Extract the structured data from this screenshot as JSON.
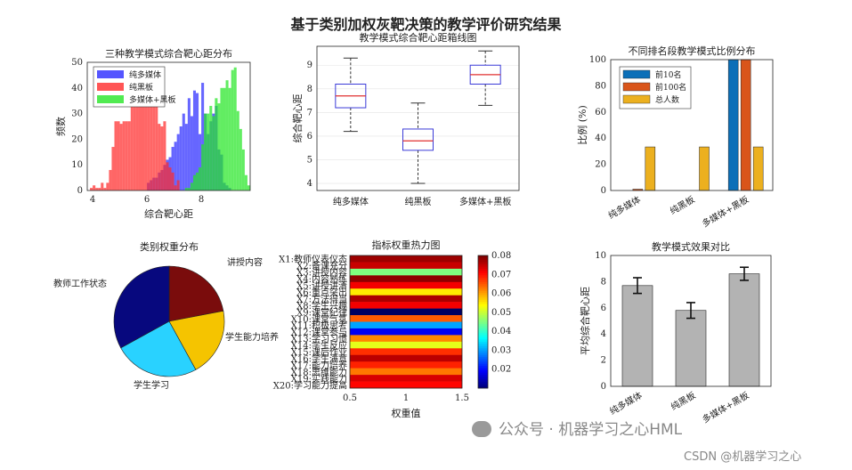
{
  "figure": {
    "title": "基于类别加权灰靶决策的教学评价研究结果",
    "watermark_wechat": "公众号 · 机器学习之心HML",
    "watermark_csdn": "CSDN @机器学习之心"
  },
  "chart_data": [
    {
      "id": "hist",
      "type": "bar",
      "title": "三种教学模式综合靶心距分布",
      "xlabel": "综合靶心距",
      "ylabel": "频数",
      "xlim": [
        3.8,
        9.8
      ],
      "ylim": [
        0,
        50
      ],
      "xticks": [
        4,
        6,
        8
      ],
      "yticks": [
        0,
        10,
        20,
        30,
        40,
        50
      ],
      "legend_position": "top-left",
      "series": [
        {
          "name": "纯多媒体",
          "color": "#2b2bff",
          "bin_start": 6.0,
          "bin_width": 0.1,
          "values": [
            3,
            4,
            5,
            5,
            7,
            8,
            10,
            12,
            13,
            17,
            19,
            22,
            25,
            30,
            26,
            36,
            29,
            39,
            38,
            22,
            42,
            30,
            22,
            27,
            30,
            33,
            16,
            14,
            3,
            2,
            1
          ]
        },
        {
          "name": "纯黑板",
          "color": "#ff2b2b",
          "bin_start": 3.9,
          "bin_width": 0.1,
          "values": [
            1,
            2,
            1,
            1,
            3,
            1,
            3,
            8,
            17,
            27,
            27,
            26,
            27,
            27,
            27,
            35,
            37,
            38,
            35,
            37,
            38,
            35,
            33,
            38,
            33,
            26,
            25,
            27,
            11,
            9,
            7,
            2,
            4
          ]
        },
        {
          "name": "多媒体+黑板",
          "color": "#25e625",
          "bin_start": 7.4,
          "bin_width": 0.1,
          "values": [
            1,
            1,
            3,
            6,
            7,
            9,
            18,
            30,
            30,
            33,
            29,
            36,
            34,
            40,
            40,
            43,
            40,
            47,
            48,
            31,
            24,
            16,
            6,
            2
          ]
        }
      ]
    },
    {
      "id": "box",
      "type": "box",
      "title": "教学模式综合靶心距箱线图",
      "ylabel": "综合靶心距",
      "ylim": [
        3.7,
        9.8
      ],
      "yticks": [
        4,
        5,
        6,
        7,
        8,
        9
      ],
      "categories": [
        "纯多媒体",
        "纯黑板",
        "多媒体+黑板"
      ],
      "stats": [
        {
          "min": 6.2,
          "q1": 7.2,
          "median": 7.7,
          "q3": 8.2,
          "max": 9.3
        },
        {
          "min": 4.0,
          "q1": 5.4,
          "median": 5.8,
          "q3": 6.3,
          "max": 7.4
        },
        {
          "min": 7.3,
          "q1": 8.2,
          "median": 8.6,
          "q3": 9.0,
          "max": 9.6
        }
      ]
    },
    {
      "id": "rankbar",
      "type": "bar",
      "title": "不同排名段教学模式比例分布",
      "ylabel": "比例 (%)",
      "ylim": [
        0,
        100
      ],
      "yticks": [
        0,
        20,
        40,
        60,
        80,
        100
      ],
      "categories": [
        "纯多媒体",
        "纯黑板",
        "多媒体+黑板"
      ],
      "legend_position": "top-left",
      "series": [
        {
          "name": "前10名",
          "color": "#0b6fb8",
          "values": [
            0,
            0,
            100
          ]
        },
        {
          "name": "前100名",
          "color": "#d9551a",
          "values": [
            1,
            0,
            100
          ]
        },
        {
          "name": "总人数",
          "color": "#ecb01f",
          "values": [
            33.3,
            33.3,
            33.3
          ]
        }
      ]
    },
    {
      "id": "pie",
      "type": "pie",
      "title": "类别权重分布",
      "slices": [
        {
          "label": "讲授内容",
          "value": 0.22,
          "color": "#7a0c0c"
        },
        {
          "label": "学生能力培养",
          "value": 0.2,
          "color": "#f5c400"
        },
        {
          "label": "学生学习",
          "value": 0.25,
          "color": "#29d2ff"
        },
        {
          "label": "教师工作状态",
          "value": 0.33,
          "color": "#07087e"
        }
      ]
    },
    {
      "id": "heatmap",
      "type": "heatmap",
      "title": "指标权重热力图",
      "xlabel": "权重值",
      "xticks": [
        "0.5",
        "1",
        "1.5"
      ],
      "row_labels": [
        "X1:教师仪表仪态",
        "X2:备课充分",
        "X3:讲授内容",
        "X4:内容熟练",
        "X5:讲授讲清",
        "X6:重点突出",
        "X7:方法得当",
        "X8:学生兴趣",
        "X9:课堂纪律",
        "X10:课堂气氛",
        "X11:积极思考",
        "X12:课堂参与",
        "X13:学习习惯",
        "X14:学生反应",
        "X15:课后作业",
        "X16:学生满意",
        "X17:能力培养",
        "X18:思维能力",
        "X19:实践能力",
        "X20:学习能力提高"
      ],
      "values": [
        0.078,
        0.075,
        0.045,
        0.079,
        0.072,
        0.055,
        0.077,
        0.072,
        0.008,
        0.065,
        0.03,
        0.018,
        0.062,
        0.052,
        0.068,
        0.076,
        0.069,
        0.063,
        0.074,
        0.071
      ],
      "colorbar": {
        "min": 0.01,
        "max": 0.08,
        "ticks": [
          "0.08",
          "0.07",
          "0.06",
          "0.05",
          "0.04",
          "0.03",
          "0.02"
        ]
      }
    },
    {
      "id": "effect",
      "type": "bar",
      "title": "教学模式效果对比",
      "ylabel": "平均综合靶心距",
      "ylim": [
        0,
        10
      ],
      "yticks": [
        0,
        2,
        4,
        6,
        8,
        10
      ],
      "categories": [
        "纯多媒体",
        "纯黑板",
        "多媒体+黑板"
      ],
      "values": [
        7.7,
        5.8,
        8.6
      ],
      "errors": [
        0.6,
        0.6,
        0.5
      ],
      "color": "#b3b3b3"
    }
  ]
}
